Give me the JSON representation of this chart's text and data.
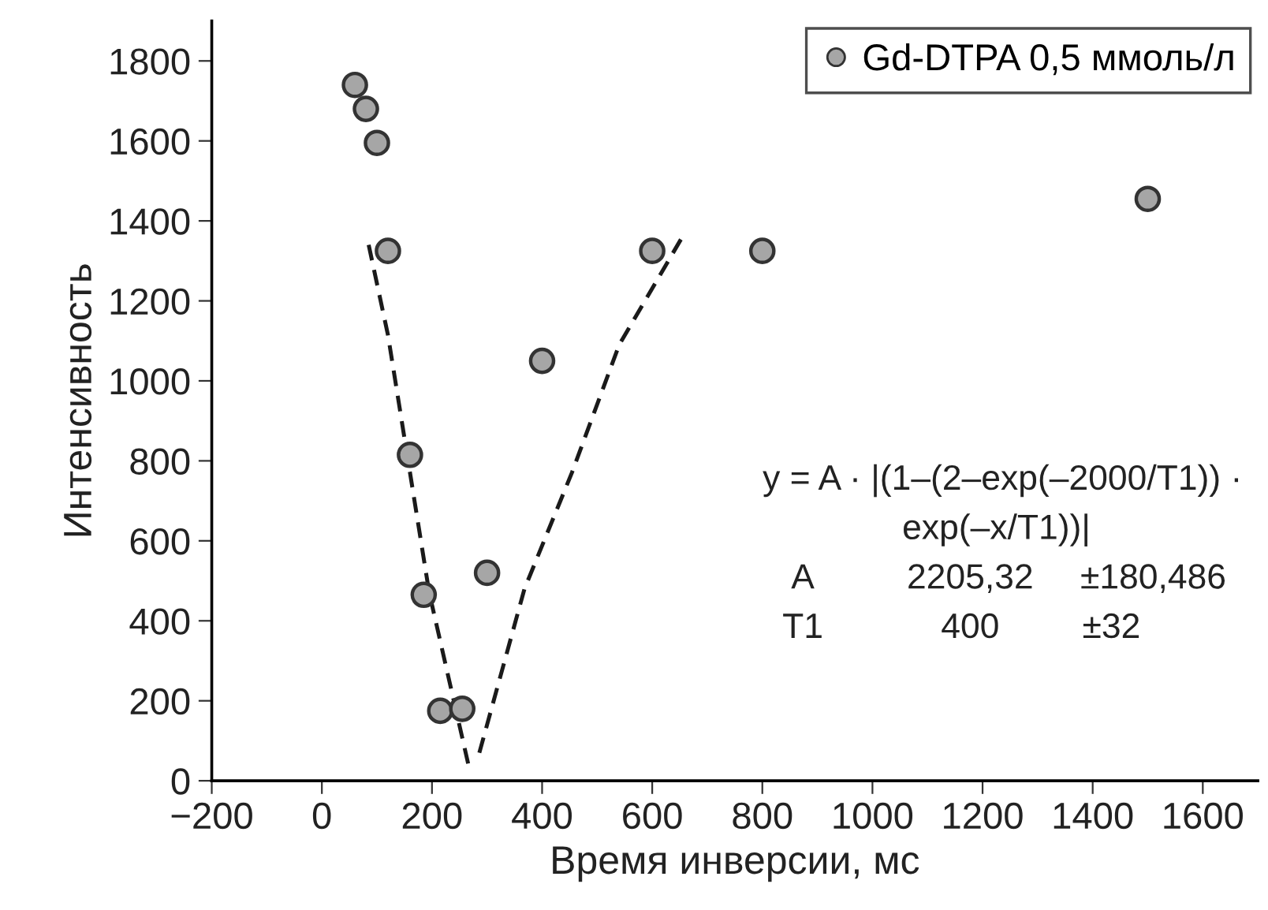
{
  "chart_data": {
    "type": "scatter",
    "xlabel": "Время инверсии, мс",
    "ylabel": "Интенсивность",
    "xlim": [
      -200,
      1700
    ],
    "ylim": [
      0,
      1900
    ],
    "xticks": [
      {
        "value": -200,
        "label": "−200"
      },
      0,
      200,
      400,
      600,
      800,
      1000,
      1200,
      1400,
      1600
    ],
    "yticks": [
      0,
      200,
      400,
      600,
      800,
      1000,
      1200,
      1400,
      1600,
      1800
    ],
    "grid": false,
    "legend": "top right",
    "marker": "circle",
    "series": [
      {
        "name": "Gd-DTPA 0,5 ммоль/л",
        "color": "#a6a6a6",
        "x": [
          60,
          80,
          100,
          120,
          160,
          185,
          215,
          255,
          300,
          400,
          600,
          800,
          1500
        ],
        "values": [
          1740,
          1680,
          1595,
          1325,
          815,
          465,
          175,
          180,
          520,
          1050,
          1325,
          1325,
          1455
        ]
      },
      {
        "type": "line",
        "color": "#1a1a1a",
        "line_style": "dashed",
        "marker": "none",
        "x": [
          85,
          120,
          195,
          267
        ],
        "values": [
          1340,
          1115,
          470,
          35
        ]
      },
      {
        "type": "line",
        "color": "#1a1a1a",
        "line_style": "dashed",
        "marker": "none",
        "x": [
          286,
          368,
          454,
          540,
          659
        ],
        "values": [
          70,
          480,
          770,
          1090,
          1370
        ]
      }
    ],
    "annotations": [
      "y = A · |(1–(2–exp(–2000/T1)) ·",
      "exp(–x/T1))|",
      "A",
      "2205,32",
      "±180,486",
      "T1",
      "400",
      "±32"
    ]
  }
}
